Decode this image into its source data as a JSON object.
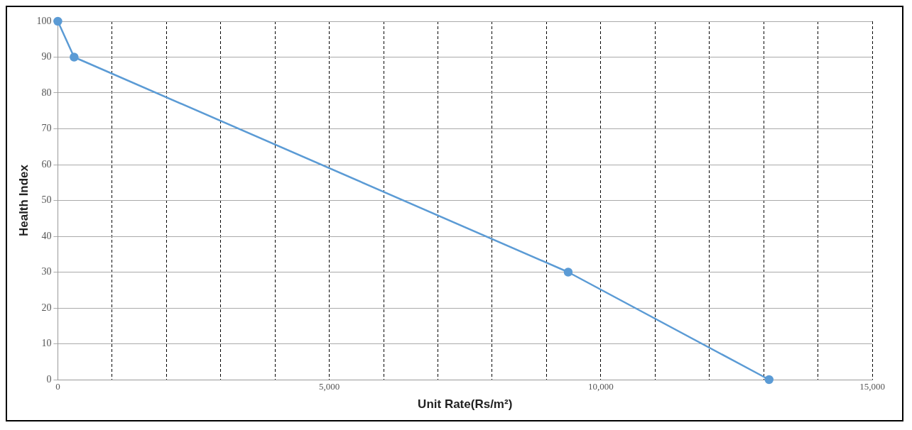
{
  "chart_data": {
    "type": "line",
    "xlabel": "Unit Rate(Rs/m²)",
    "ylabel": "Health Index",
    "x": [
      0,
      300,
      9400,
      13100
    ],
    "series": [
      {
        "color": "#5b9bd5",
        "values": [
          100,
          90,
          30,
          0
        ]
      }
    ],
    "xlim": [
      0,
      15000
    ],
    "xticks": [
      0,
      {
        "value": 1000,
        "label": null
      },
      {
        "value": 2000,
        "label": null
      },
      {
        "value": 3000,
        "label": null
      },
      {
        "value": 4000,
        "label": null
      },
      {
        "value": 5000,
        "label": "5,000"
      },
      {
        "value": 6000,
        "label": null
      },
      {
        "value": 7000,
        "label": null
      },
      {
        "value": 8000,
        "label": null
      },
      {
        "value": 9000,
        "label": null
      },
      {
        "value": 10000,
        "label": "10,000"
      },
      {
        "value": 11000,
        "label": null
      },
      {
        "value": 12000,
        "label": null
      },
      {
        "value": 13000,
        "label": null
      },
      {
        "value": 14000,
        "label": null
      },
      {
        "value": 15000,
        "label": "15,000"
      }
    ],
    "ylim": [
      0,
      100
    ],
    "yticks": [
      0,
      10,
      20,
      30,
      40,
      50,
      60,
      70,
      80,
      90,
      100
    ],
    "grid": true,
    "marker": "circle",
    "line_style": "solid",
    "legend": false
  }
}
